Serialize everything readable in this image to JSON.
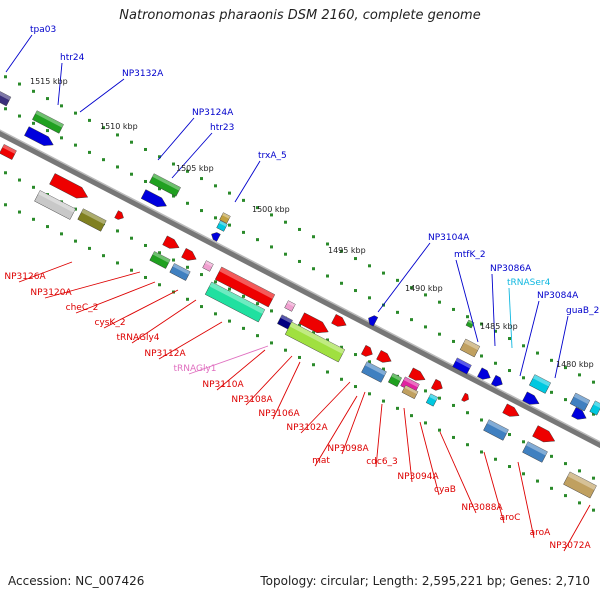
{
  "title": "Natronomonas pharaonis DSM 2160, complete genome",
  "footer": {
    "accession": "Accession: NC_007426",
    "topology": "Topology: circular; Length: 2,595,221 bp; Genes: 2,710"
  },
  "colors": {
    "cds": "#ee0000",
    "trna": "#e070c0",
    "trna_cyan": "#10b8e0",
    "label_blue": "#0000cc",
    "label_red": "#dd0000",
    "label_pink": "#e070c0",
    "label_cyan": "#10b8e0",
    "backbone": "#888888",
    "dots": "#2a8a2a"
  },
  "ticks": [
    "1515 kbp",
    "1510 kbp",
    "1505 kbp",
    "1500 kbp",
    "1495 kbp",
    "1490 kbp",
    "1485 kbp",
    "1480 kbp"
  ],
  "labels_top": [
    "tpa03",
    "htr24",
    "NP3132A",
    "NP3124A",
    "htr23",
    "trxA_5",
    "NP3104A",
    "mtfK_2",
    "NP3086A",
    "tRNASer4",
    "NP3084A",
    "guaB_2"
  ],
  "labels_bottom": [
    "NP3126A",
    "NP3120A",
    "cheC_2",
    "cysK_2",
    "tRNAGly4",
    "NP3112A",
    "tRNAGly1",
    "NP3110A",
    "NP3108A",
    "NP3106A",
    "NP3102A",
    "NP3098A",
    "mat",
    "cdc6_3",
    "NP3094A",
    "cyaB",
    "NP3088A",
    "aroC",
    "aroA",
    "NP3072A"
  ]
}
